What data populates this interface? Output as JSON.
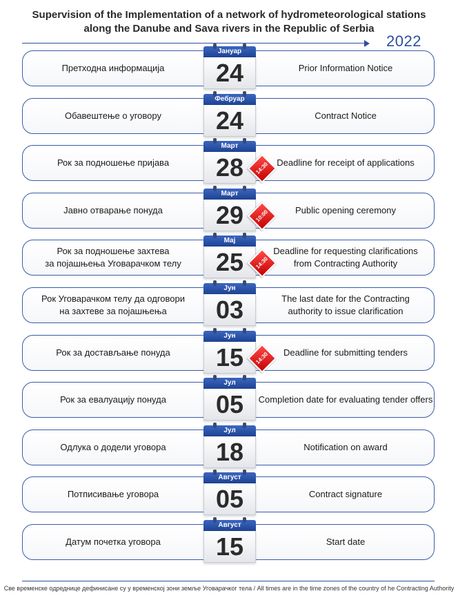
{
  "title": {
    "line1": "Supervision of the Implementation of a network of hydrometeorological stations",
    "line2": "along the Danube and Sava rivers in the Republic of Serbia",
    "year": "2022"
  },
  "rows": [
    {
      "left": "Претходна информација",
      "month": "Јануар",
      "day": "24",
      "time": "",
      "right": "Prior Information Notice"
    },
    {
      "left": "Обавештење о уговору",
      "month": "Фебруар",
      "day": "24",
      "time": "",
      "right": "Contract Notice"
    },
    {
      "left": "Рок за подношење пријава",
      "month": "Март",
      "day": "28",
      "time": "14:30",
      "right": "Deadline for receipt of applications"
    },
    {
      "left": "Јавно отварање понуда",
      "month": "Март",
      "day": "29",
      "time": "10:00",
      "right": "Public opening ceremony"
    },
    {
      "left": "Рок за подношење захтева\nза појашњења Уговарачком телу",
      "month": "Мај",
      "day": "25",
      "time": "14:30",
      "right": "Deadline for requesting clarifications\nfrom Contracting Authority"
    },
    {
      "left": "Рок Уговарачком телу да одговори\nна захтеве за појашњења",
      "month": "Јун",
      "day": "03",
      "time": "",
      "right": "The last date for the Contracting\nauthority to issue clarification"
    },
    {
      "left": "Рок за достављање понуда",
      "month": "Јун",
      "day": "15",
      "time": "14:30",
      "right": "Deadline for submitting tenders"
    },
    {
      "left": "Рок за евалуацију понуда",
      "month": "Јул",
      "day": "05",
      "time": "",
      "right": "Completion date for evaluating tender offers"
    },
    {
      "left": "Одлука о додели уговора",
      "month": "Јул",
      "day": "18",
      "time": "",
      "right": "Notification on award"
    },
    {
      "left": "Потписивање уговора",
      "month": "Август",
      "day": "05",
      "time": "",
      "right": "Contract signature"
    },
    {
      "left": "Датум почетка уговора",
      "month": "Август",
      "day": "15",
      "time": "",
      "right": "Start date"
    }
  ],
  "footnote": "Све временске одреднице дефинисане су у временској зони земље Уговарачког тела / All times are in the time zones of the country of he Contracting Authority",
  "colors": {
    "accent": "#2d4f9e",
    "calendar_header": "#1e4291",
    "time_badge": "#d40000"
  }
}
